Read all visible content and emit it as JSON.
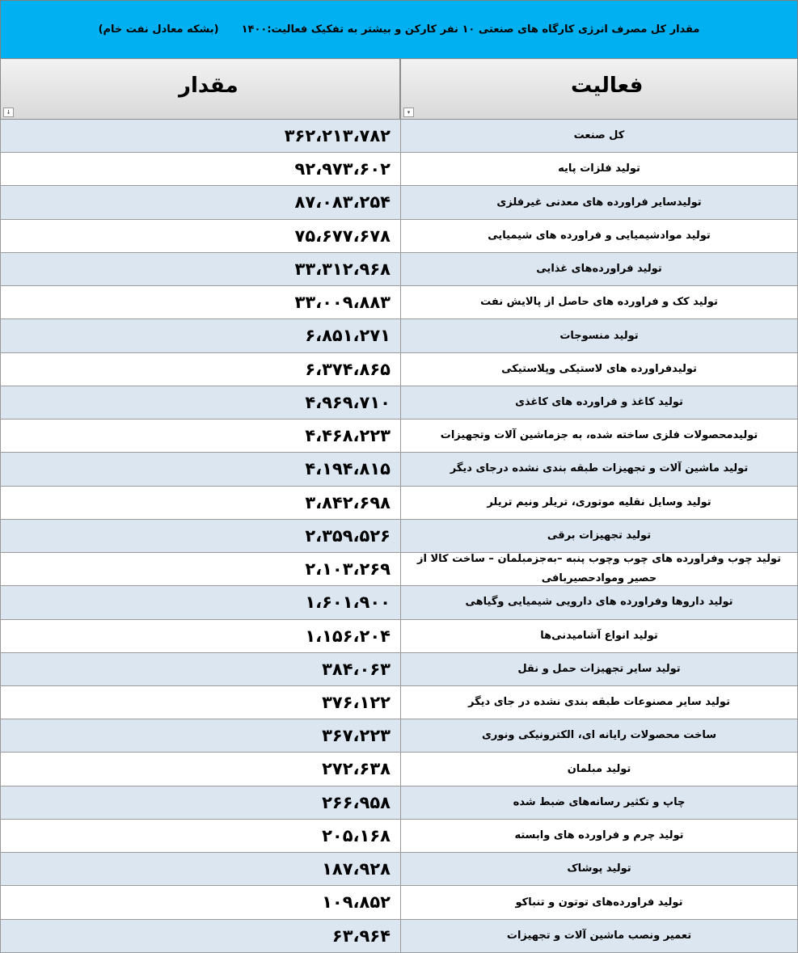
{
  "header": {
    "title": "مقدار کل مصرف انرژی کارگاه های صنعتی ۱۰ نفر کارکن و بیشتر به تفکیک فعالیت:۱۴۰۰",
    "unit": "(بشکه معادل نفت خام)"
  },
  "table": {
    "columns": [
      "مقدار",
      "فعالیت"
    ],
    "rows": [
      [
        "۳۶۲،۲۱۳،۷۸۲",
        "کل صنعت"
      ],
      [
        "۹۲،۹۷۳،۶۰۲",
        "تولید فلزات پایه"
      ],
      [
        "۸۷،۰۸۳،۲۵۴",
        "تولیدسایر فراورده های معدنی غیرفلزی"
      ],
      [
        "۷۵،۶۷۷،۶۷۸",
        "تولید موادشیمیایی و فراورده های شیمیایی"
      ],
      [
        "۳۳،۳۱۲،۹۶۸",
        "تولید فراورده‌های غذایی"
      ],
      [
        "۳۳،۰۰۹،۸۸۳",
        "تولید کک و فراورده های حاصل از پالایش نفت"
      ],
      [
        "۶،۸۵۱،۲۷۱",
        "تولید منسوجات"
      ],
      [
        "۶،۳۷۴،۸۶۵",
        "تولیدفراورده های لاستیکی وپلاستیکی"
      ],
      [
        "۴،۹۶۹،۷۱۰",
        "تولید کاغذ و فراورده های کاغذی"
      ],
      [
        "۴،۴۶۸،۲۲۳",
        "تولیدمحصولات فلزی ساخته شده، به جزماشین آلات وتجهیزات"
      ],
      [
        "۴،۱۹۴،۸۱۵",
        "تولید ماشین آلات و تجهیزات طبقه بندی نشده درجای دیگر"
      ],
      [
        "۳،۸۴۲،۶۹۸",
        "تولید وسایل نقلیه موتوری، تریلر ونیم تریلر"
      ],
      [
        "۲،۳۵۹،۵۲۶",
        "تولید تجهیزات برقی"
      ],
      [
        "۲،۱۰۳،۲۶۹",
        "تولید چوب وفراورده های چوب وچوب پنبه –به‌جزمبلمان – ساخت کالا از حصیر ومواد‌حصیربافی"
      ],
      [
        "۱،۶۰۱،۹۰۰",
        "تولید داروها وفراورده های دارویی شیمیایی وگیاهی"
      ],
      [
        "۱،۱۵۶،۲۰۴",
        "تولید انواع آشامیدنی‌ها"
      ],
      [
        "۳۸۴،۰۶۳",
        "تولید سایر تجهیزات حمل و نقل"
      ],
      [
        "۳۷۶،۱۲۲",
        "تولید سایر مصنوعات طبقه بندی نشده در جای دیگر"
      ],
      [
        "۳۶۷،۲۲۳",
        "ساخت محصولات رایانه ای، الکترونیکی ونوری"
      ],
      [
        "۲۷۲،۶۳۸",
        "تولید مبلمان"
      ],
      [
        "۲۶۶،۹۵۸",
        "چاپ و تکثیر رسانه‌های ضبط شده"
      ],
      [
        "۲۰۵،۱۶۸",
        "تولید چرم و فراورده های وابسته"
      ],
      [
        "۱۸۷،۹۲۸",
        "تولید پوشاک"
      ],
      [
        "۱۰۹،۸۵۲",
        "تولید فراورده‌های توتون و تنباکو"
      ],
      [
        "۶۳،۹۶۴",
        "تعمیر ونصب ماشین آلات و تجهیزات"
      ]
    ]
  }
}
